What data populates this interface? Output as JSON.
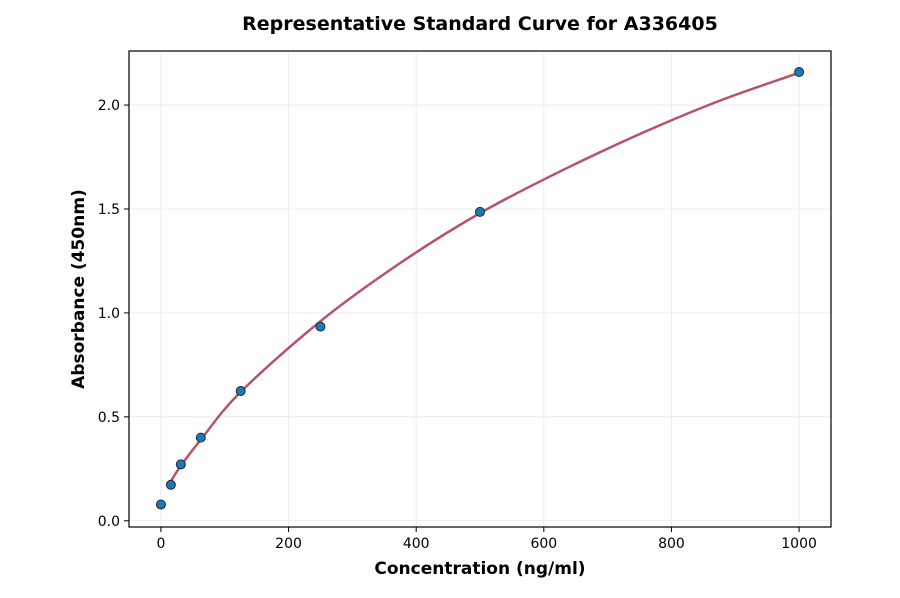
{
  "chart_data": {
    "type": "scatter",
    "title": "Representative Standard Curve for A336405",
    "xlabel": "Concentration (ng/ml)",
    "ylabel": "Absorbance (450nm)",
    "xlim": [
      -50,
      1050
    ],
    "ylim": [
      -0.03,
      2.26
    ],
    "xticks": [
      0,
      200,
      400,
      600,
      800,
      1000
    ],
    "yticks": [
      0.0,
      0.5,
      1.0,
      1.5,
      2.0
    ],
    "xtick_labels": [
      "0",
      "200",
      "400",
      "600",
      "800",
      "1000"
    ],
    "ytick_labels": [
      "0.0",
      "0.5",
      "1.0",
      "1.5",
      "2.0"
    ],
    "grid": true,
    "points": {
      "x": [
        0,
        15.625,
        31.25,
        62.5,
        125,
        250,
        500,
        1000
      ],
      "y": [
        0.078,
        0.173,
        0.271,
        0.4,
        0.624,
        0.934,
        1.486,
        2.159
      ]
    },
    "fit_curve": {
      "x": [
        15.625,
        31.25,
        62.5,
        125,
        250,
        375,
        500,
        625,
        750,
        875,
        1000
      ],
      "y": [
        0.19,
        0.265,
        0.39,
        0.62,
        0.96,
        1.24,
        1.48,
        1.68,
        1.86,
        2.02,
        2.155
      ]
    },
    "colors": {
      "point": "#1f77b4",
      "point_edge": "#1a2a3a",
      "curve": "#b85365",
      "grid": "#e8e8e8"
    }
  }
}
